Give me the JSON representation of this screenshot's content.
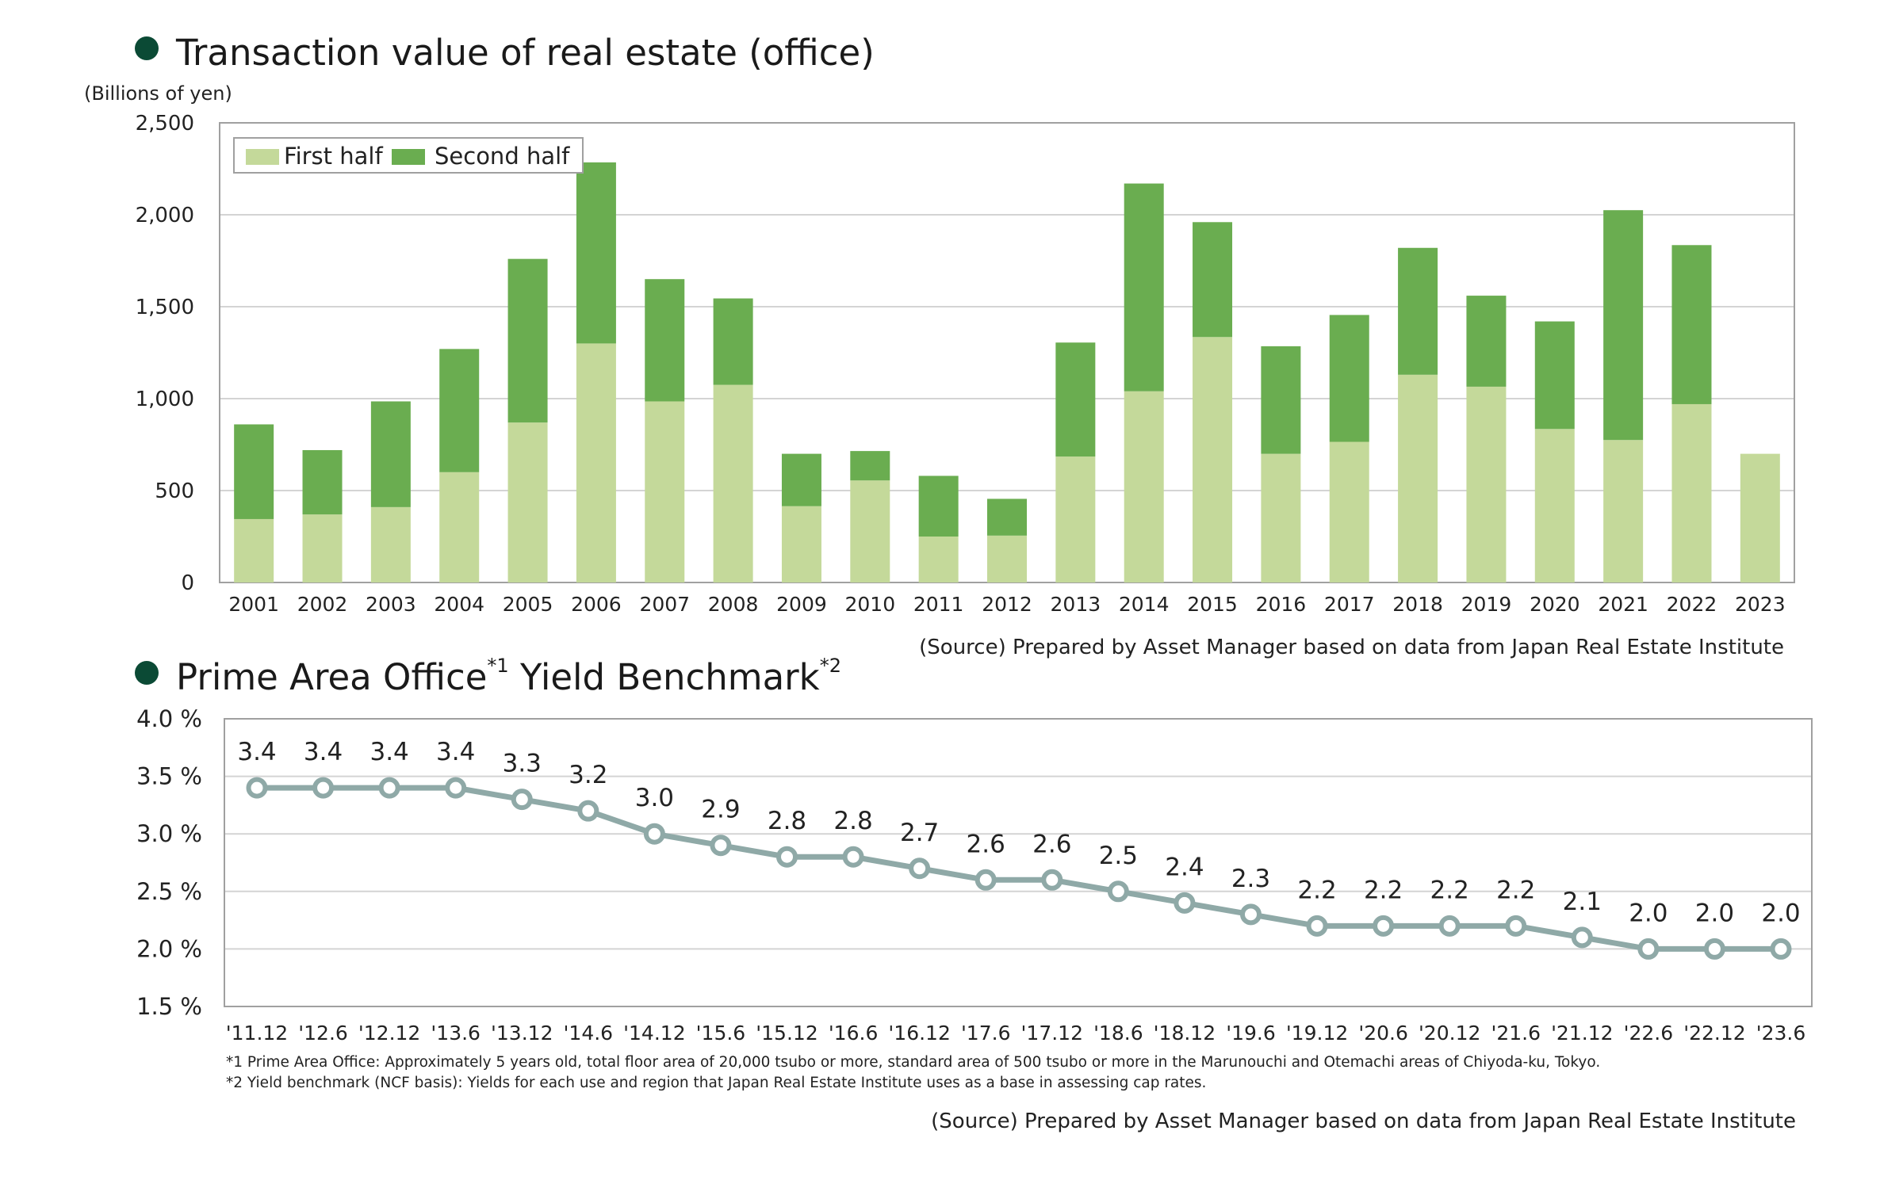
{
  "chart_data": [
    {
      "type": "bar",
      "stacked": true,
      "title": "Transaction value of real estate (office)",
      "ylabel": "(Billions of yen)",
      "ylim": [
        0,
        2500
      ],
      "yticks": [
        "0",
        "500",
        "1,000",
        "1,500",
        "2,000",
        "2,500"
      ],
      "grid": true,
      "legend_position": "top-left",
      "categories": [
        "2001",
        "2002",
        "2003",
        "2004",
        "2005",
        "2006",
        "2007",
        "2008",
        "2009",
        "2010",
        "2011",
        "2012",
        "2013",
        "2014",
        "2015",
        "2016",
        "2017",
        "2018",
        "2019",
        "2020",
        "2021",
        "2022",
        "2023"
      ],
      "series": [
        {
          "name": "First half",
          "color": "#c4d99a",
          "values": [
            345,
            370,
            410,
            600,
            870,
            1300,
            985,
            1075,
            415,
            555,
            250,
            255,
            685,
            1040,
            1335,
            700,
            765,
            1130,
            1065,
            835,
            775,
            970,
            700
          ]
        },
        {
          "name": "Second half",
          "color": "#6aad50",
          "values": [
            515,
            350,
            575,
            670,
            890,
            985,
            665,
            470,
            285,
            160,
            330,
            200,
            620,
            1130,
            625,
            585,
            690,
            690,
            495,
            585,
            1250,
            865,
            0
          ]
        }
      ],
      "source": "(Source) Prepared by Asset Manager based on data from Japan Real Estate Institute"
    },
    {
      "type": "line",
      "title": "Prime Area Office",
      "title_sup1": "*1",
      "title_mid": " Yield Benchmark",
      "title_sup2": "*2",
      "ylim": [
        1.5,
        4.0
      ],
      "yticks": [
        "1.5 %",
        "2.0 %",
        "2.5 %",
        "3.0 %",
        "3.5 %",
        "4.0 %"
      ],
      "grid": true,
      "line_color": "#8fa9a7",
      "x": [
        "'11.12",
        "'12.6",
        "'12.12",
        "'13.6",
        "'13.12",
        "'14.6",
        "'14.12",
        "'15.6",
        "'15.12",
        "'16.6",
        "'16.12",
        "'17.6",
        "'17.12",
        "'18.6",
        "'18.12",
        "'19.6",
        "'19.12",
        "'20.6",
        "'20.12",
        "'21.6",
        "'21.12",
        "'22.6",
        "'22.12",
        "'23.6"
      ],
      "values": [
        3.4,
        3.4,
        3.4,
        3.4,
        3.3,
        3.2,
        3.0,
        2.9,
        2.8,
        2.8,
        2.7,
        2.6,
        2.6,
        2.5,
        2.4,
        2.3,
        2.2,
        2.2,
        2.2,
        2.2,
        2.1,
        2.0,
        2.0,
        2.0
      ],
      "data_labels": [
        "3.4",
        "3.4",
        "3.4",
        "3.4",
        "3.3",
        "3.2",
        "3.0",
        "2.9",
        "2.8",
        "2.8",
        "2.7",
        "2.6",
        "2.6",
        "2.5",
        "2.4",
        "2.3",
        "2.2",
        "2.2",
        "2.2",
        "2.2",
        "2.1",
        "2.0",
        "2.0",
        "2.0"
      ],
      "footnotes": [
        "*1 Prime Area Office: Approximately 5 years old, total floor area of 20,000 tsubo or more, standard area of 500 tsubo or more in the Marunouchi and Otemachi areas of Chiyoda-ku, Tokyo.",
        "*2 Yield benchmark (NCF basis): Yields for each use and region that Japan Real Estate Institute uses as a base in assessing cap rates."
      ],
      "source": "(Source) Prepared by Asset Manager based on data from Japan Real Estate Institute"
    }
  ]
}
